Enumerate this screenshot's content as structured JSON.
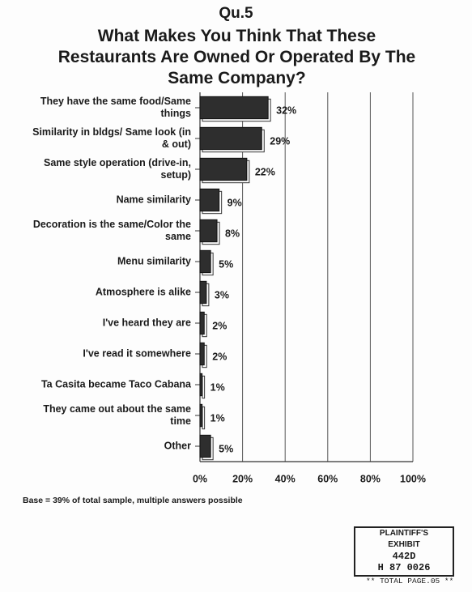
{
  "chart_data": {
    "type": "bar",
    "orientation": "horizontal",
    "pretitle": "Qu.5",
    "title": "What Makes You Think That These Restaurants Are Owned Or Operated By The Same Company?",
    "categories": [
      "They have the same food/Same things",
      "Similarity in bldgs/ Same look (in & out)",
      "Same style operation (drive-in, setup)",
      "Name similarity",
      "Decoration is the same/Color the same",
      "Menu similarity",
      "Atmosphere is alike",
      "I've heard they are",
      "I've read it somewhere",
      "Ta Casita became Taco Cabana",
      "They came out about the same time",
      "Other"
    ],
    "values": [
      32,
      29,
      22,
      9,
      8,
      5,
      3,
      2,
      2,
      1,
      1,
      5
    ],
    "value_labels": [
      "32%",
      "29%",
      "22%",
      "9%",
      "8%",
      "5%",
      "3%",
      "2%",
      "2%",
      "1%",
      "1%",
      "5%"
    ],
    "color": "#2e2e2e",
    "xlim": [
      0,
      100
    ],
    "xticks": [
      {
        "value": 0,
        "label": "0%"
      },
      {
        "value": 20,
        "label": "20%"
      },
      {
        "value": 40,
        "label": "40%"
      },
      {
        "value": 60,
        "label": "60%"
      },
      {
        "value": 80,
        "label": "80%"
      },
      {
        "value": 100,
        "label": "100%"
      }
    ],
    "grid": true,
    "note": "Base = 39% of total sample, multiple answers possible"
  },
  "stamp": {
    "line1": "PLAINTIFF'S",
    "line2": "EXHIBIT",
    "exhibit": "442D",
    "number": "H 87 0026",
    "footer": "** TOTAL PAGE.05 **"
  }
}
